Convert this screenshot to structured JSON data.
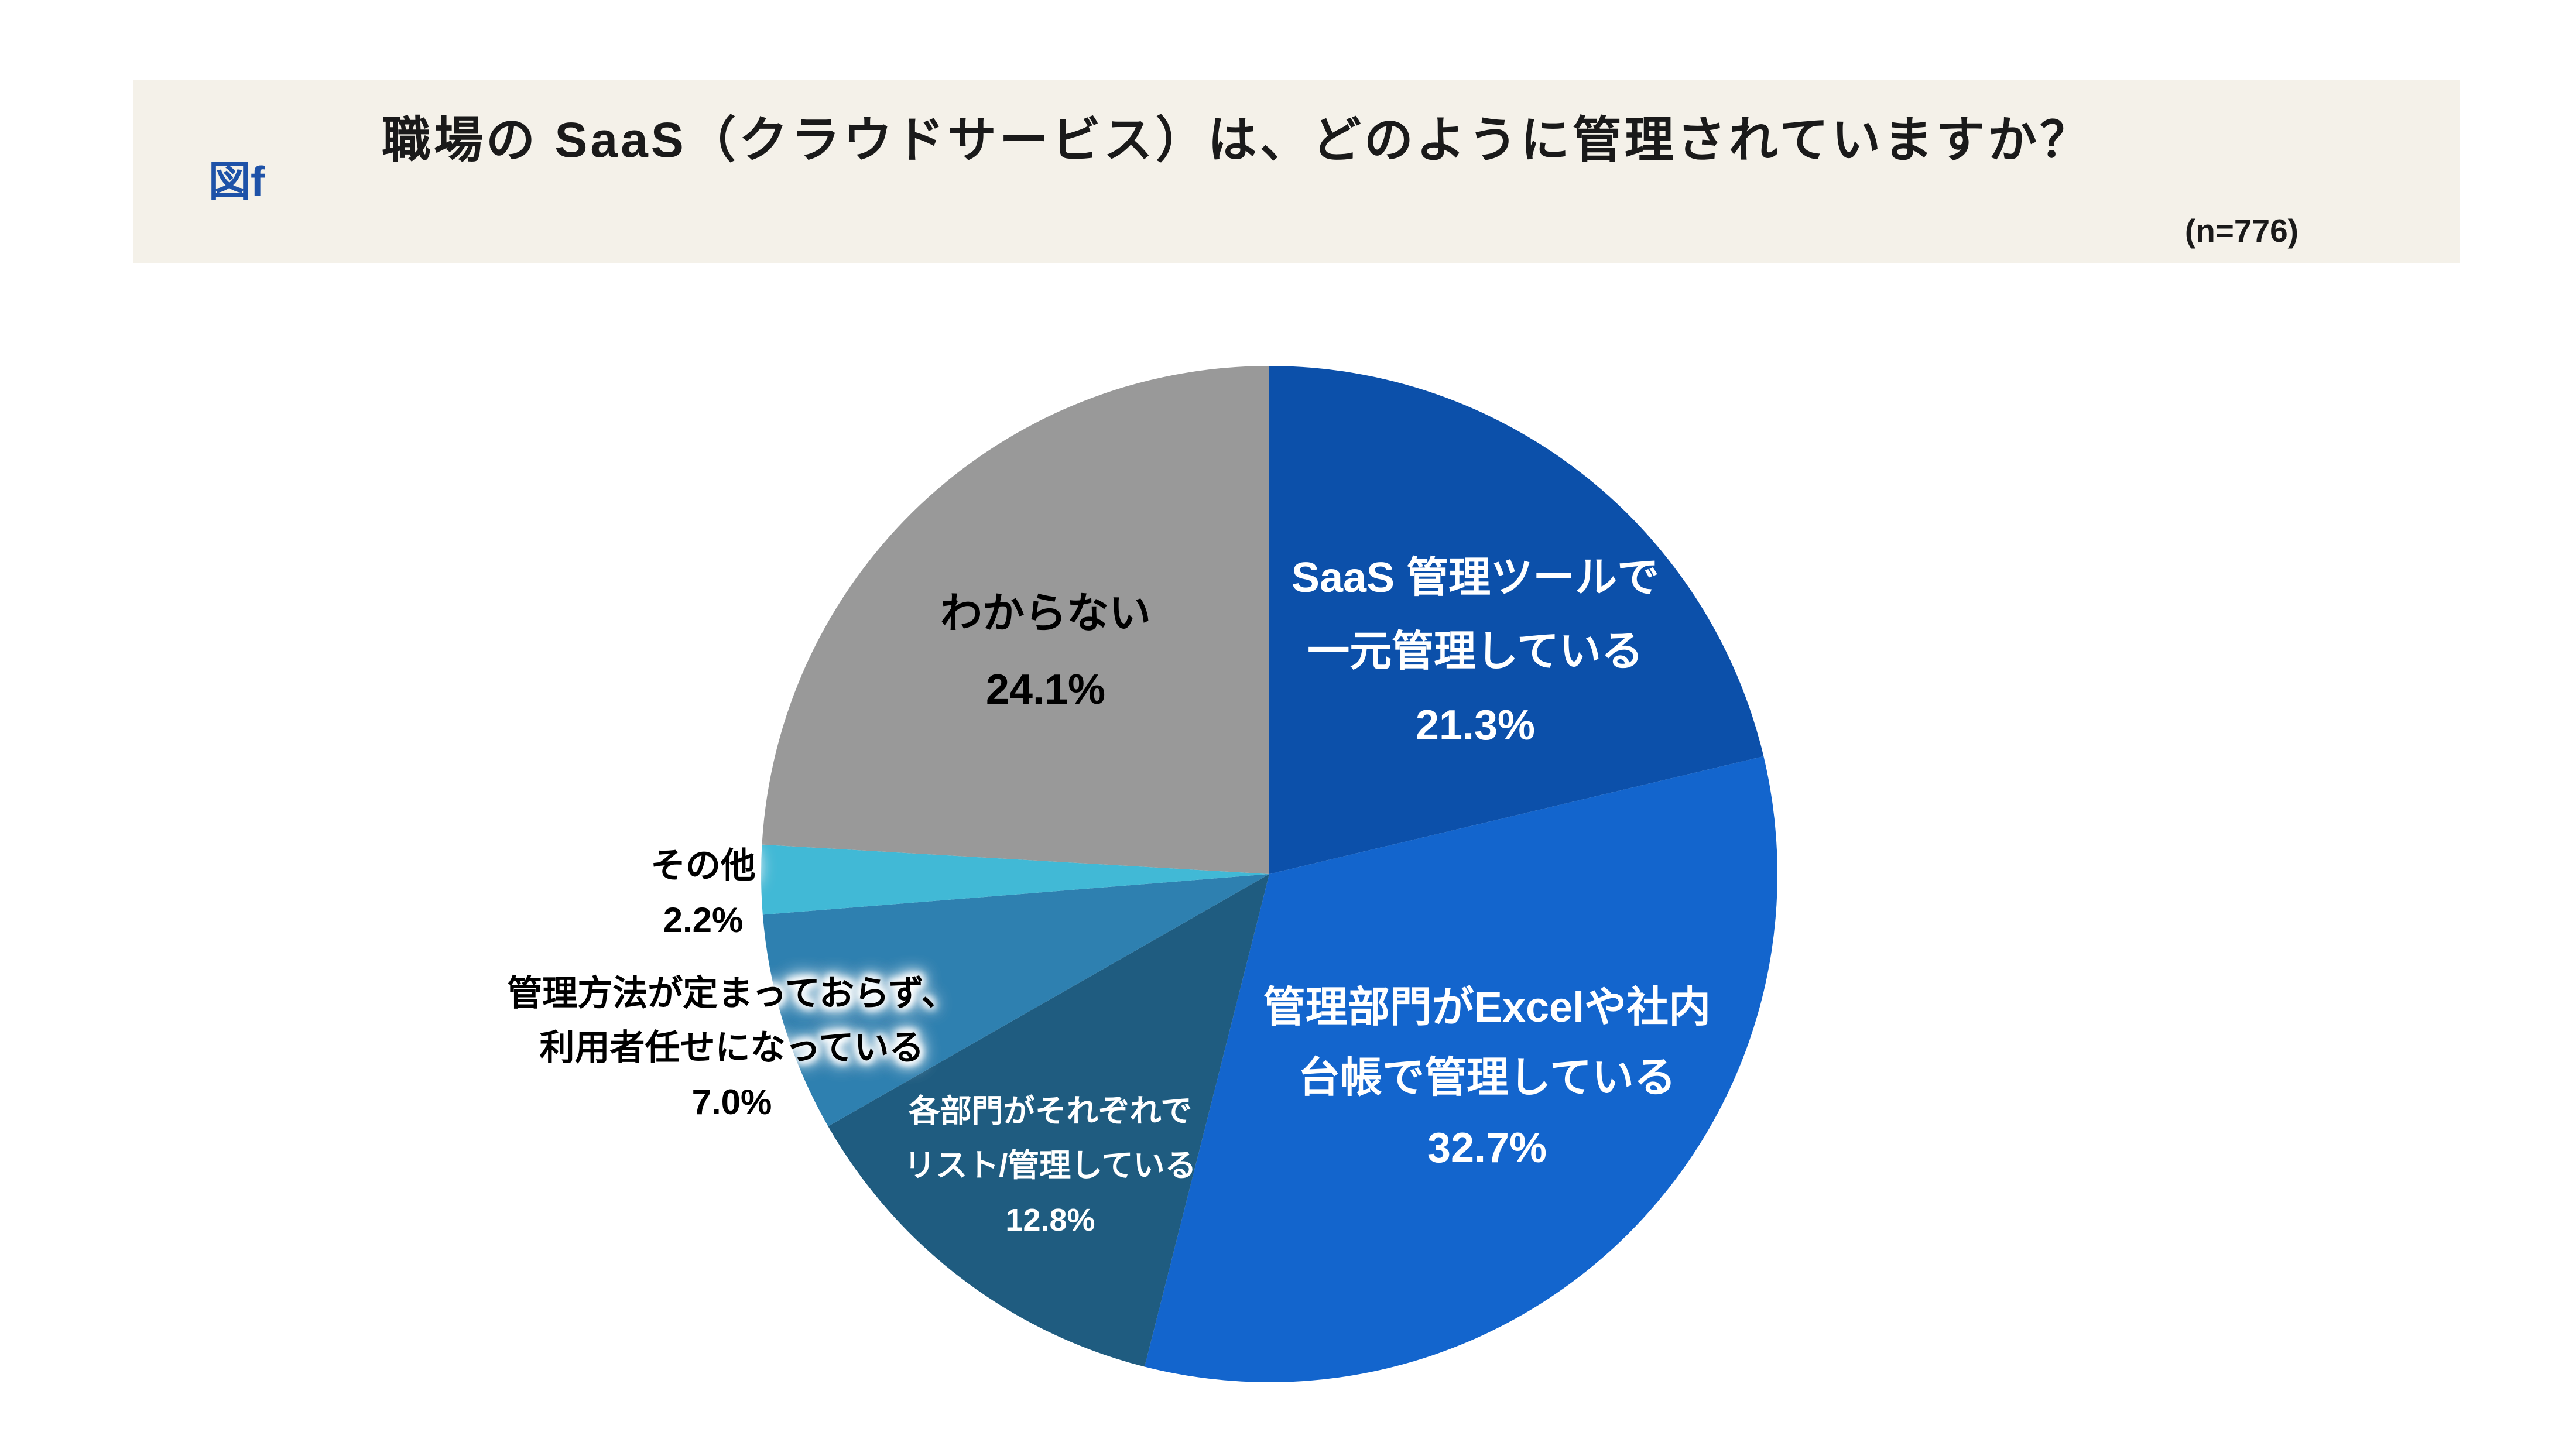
{
  "header": {
    "figure_tag": "図f",
    "title": "職場の SaaS（クラウドサービス）は、どのように管理されていますか？",
    "sample_size": "(n=776)"
  },
  "chart_data": {
    "type": "pie",
    "title": "職場の SaaS（クラウドサービス）は、どのように管理されていますか？",
    "sample_size_n": 776,
    "start_angle_deg": 0,
    "direction": "clockwise",
    "legend_position": "none",
    "slices": [
      {
        "name": "SaaS 管理ツールで一元管理している",
        "label_lines": [
          "SaaS 管理ツールで",
          "一元管理している"
        ],
        "value": 21.3,
        "value_text": "21.3%",
        "color": "#0c50aa",
        "label_color": "#ffffff",
        "label_position": "inside"
      },
      {
        "name": "管理部門がExcelや社内台帳で管理している",
        "label_lines": [
          "管理部門がExcelや社内",
          "台帳で管理している"
        ],
        "value": 32.7,
        "value_text": "32.7%",
        "color": "#1365cd",
        "label_color": "#ffffff",
        "label_position": "inside"
      },
      {
        "name": "各部門がそれぞれでリスト/管理している",
        "label_lines": [
          "各部門がそれぞれで",
          "リスト/管理している"
        ],
        "value": 12.8,
        "value_text": "12.8%",
        "color": "#1f5c80",
        "label_color": "#ffffff",
        "label_position": "inside"
      },
      {
        "name": "管理方法が定まっておらず、利用者任せになっている",
        "label_lines": [
          "管理方法が定まっておらず、",
          "利用者任せになっている"
        ],
        "value": 7.0,
        "value_text": "7.0%",
        "color": "#2e80b0",
        "label_color": "#000000",
        "label_position": "outside"
      },
      {
        "name": "その他",
        "label_lines": [
          "その他"
        ],
        "value": 2.2,
        "value_text": "2.2%",
        "color": "#41b9d6",
        "label_color": "#000000",
        "label_position": "outside"
      },
      {
        "name": "わからない",
        "label_lines": [
          "わからない"
        ],
        "value": 24.1,
        "value_text": "24.1%",
        "color": "#999999",
        "label_color": "#000000",
        "label_position": "inside"
      }
    ]
  }
}
